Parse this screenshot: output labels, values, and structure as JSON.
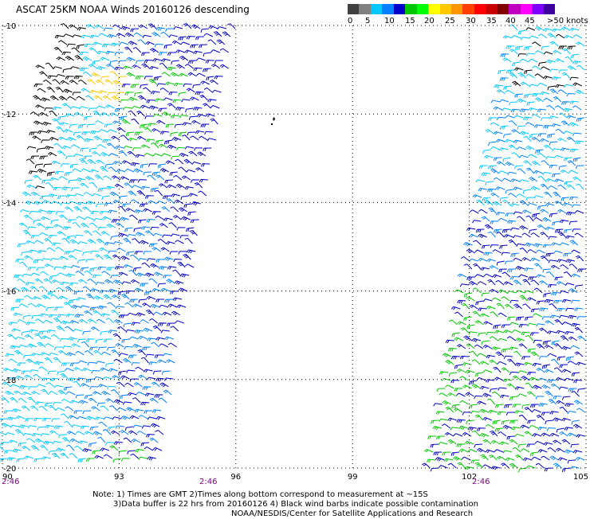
{
  "title": "ASCAT 25KM NOAA Winds 20160126 descending",
  "legend": {
    "colors": [
      "#404040",
      "#808080",
      "#00c8ff",
      "#0080ff",
      "#0000c8",
      "#00c800",
      "#00ff00",
      "#ffff00",
      "#ffc800",
      "#ff9600",
      "#ff4000",
      "#ff0000",
      "#c80000",
      "#800000",
      "#c000c0",
      "#ff00ff",
      "#8000ff",
      "#4000a0"
    ],
    "labels": [
      "0",
      "5",
      "10",
      "15",
      "20",
      "25",
      "30",
      "35",
      "40",
      "45",
      ">50 knots"
    ]
  },
  "map": {
    "lon_min": 90,
    "lon_max": 105,
    "lat_top": -10,
    "lat_bottom": -20,
    "lat_ticks": [
      "-10",
      "-12",
      "-14",
      "-16",
      "-18",
      "-20"
    ],
    "lon_ticks": [
      "90",
      "93",
      "96",
      "99",
      "102",
      "105"
    ],
    "barb_colors": [
      "#00c8ff",
      "#0080ff",
      "#0000c8",
      "#00c800",
      "#ffc800",
      "#000000"
    ],
    "swaths": [
      {
        "name": "west-swath",
        "lon_range": [
          90,
          96
        ],
        "lat_range": [
          -10,
          -20
        ]
      },
      {
        "name": "east-swath",
        "lon_range": [
          101.5,
          105
        ],
        "lat_range": [
          -10,
          -20
        ]
      }
    ]
  },
  "times": [
    "2:46",
    "2:46",
    "2:46"
  ],
  "notes": {
    "line1": "Note: 1) Times are GMT 2)Times along bottom correspond to measurement at ~15S",
    "line2": "3)Data buffer is 22 hrs from 20160126 4) Black wind barbs indicate possible contamination",
    "line3": "NOAA/NESDIS/Center for Satellite Applications and Research"
  }
}
